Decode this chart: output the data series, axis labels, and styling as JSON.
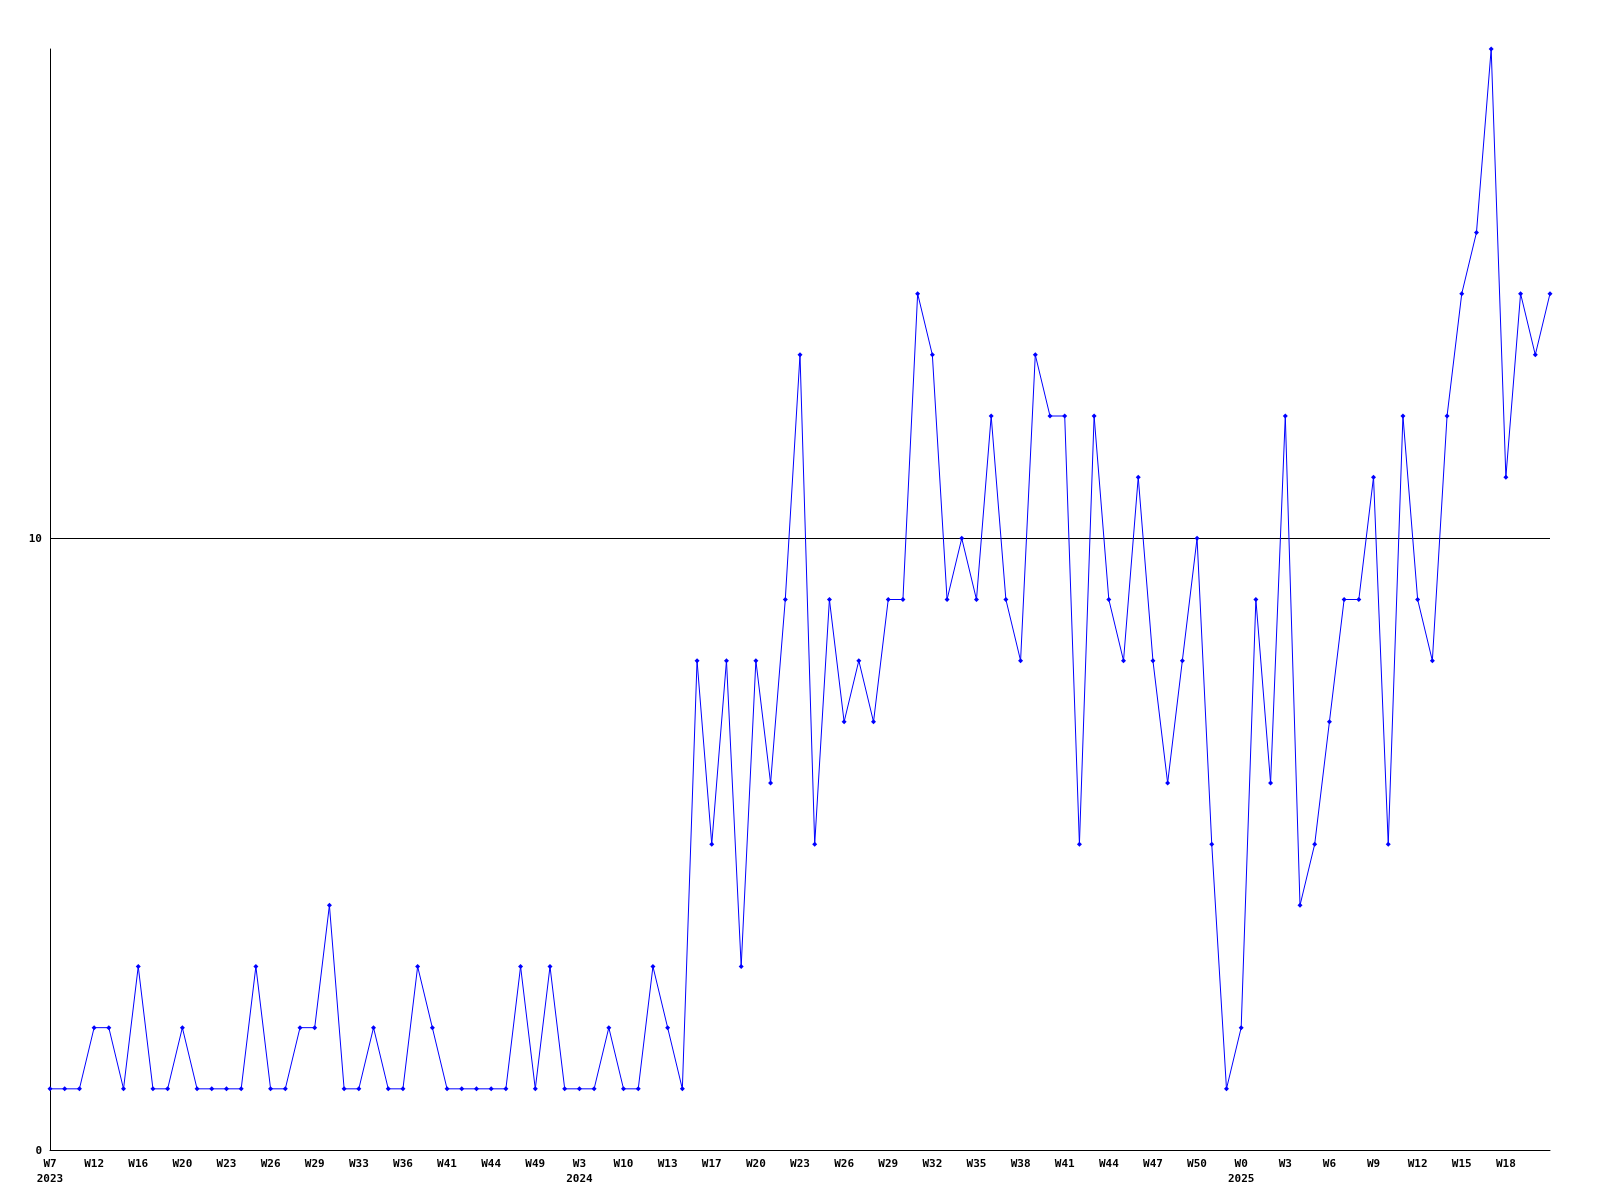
{
  "chart_data": {
    "type": "line",
    "categories": [
      "W7\n2023",
      null,
      null,
      "W12",
      null,
      null,
      "W16",
      null,
      null,
      "W20",
      null,
      null,
      "W23",
      null,
      null,
      "W26",
      null,
      null,
      "W29",
      null,
      null,
      "W33",
      null,
      null,
      "W36",
      null,
      null,
      "W41",
      null,
      null,
      "W44",
      null,
      null,
      "W49",
      null,
      null,
      "W3\n2024",
      null,
      null,
      "W10",
      null,
      null,
      "W13",
      null,
      null,
      "W17",
      null,
      null,
      "W20",
      null,
      null,
      "W23",
      null,
      null,
      "W26",
      null,
      null,
      "W29",
      null,
      null,
      "W32",
      null,
      null,
      "W35",
      null,
      null,
      "W38",
      null,
      null,
      "W41",
      null,
      null,
      "W44",
      null,
      null,
      "W47",
      null,
      null,
      "W50",
      null,
      null,
      "W0\n2025",
      null,
      null,
      "W3",
      null,
      null,
      "W6",
      null,
      null,
      "W9",
      null,
      null,
      "W12",
      null,
      null,
      "W15",
      null,
      null,
      "W18",
      null,
      null,
      null
    ],
    "series": [
      {
        "color": "#0000ff",
        "values": [
          1,
          1,
          1,
          2,
          2,
          1,
          3,
          1,
          1,
          2,
          1,
          1,
          1,
          1,
          3,
          1,
          1,
          2,
          2,
          4,
          1,
          1,
          2,
          1,
          1,
          3,
          2,
          1,
          1,
          1,
          1,
          1,
          3,
          1,
          3,
          1,
          1,
          1,
          2,
          1,
          1,
          3,
          2,
          1,
          8,
          5,
          8,
          3,
          8,
          6,
          9,
          13,
          5,
          9,
          7,
          8,
          7,
          9,
          9,
          14,
          13,
          9,
          10,
          9,
          12,
          9,
          8,
          13,
          12,
          12,
          5,
          12,
          9,
          8,
          11,
          8,
          6,
          8,
          10,
          5,
          1,
          2,
          9,
          6,
          12,
          4,
          5,
          7,
          9,
          9,
          11,
          5,
          12,
          9,
          8,
          12,
          14,
          15,
          18,
          11,
          14,
          13,
          14
        ]
      }
    ],
    "ylim": [
      0,
      18
    ],
    "yticks": [
      0,
      10
    ],
    "grid": "y",
    "marker": "diamond",
    "line_style": "solid"
  }
}
